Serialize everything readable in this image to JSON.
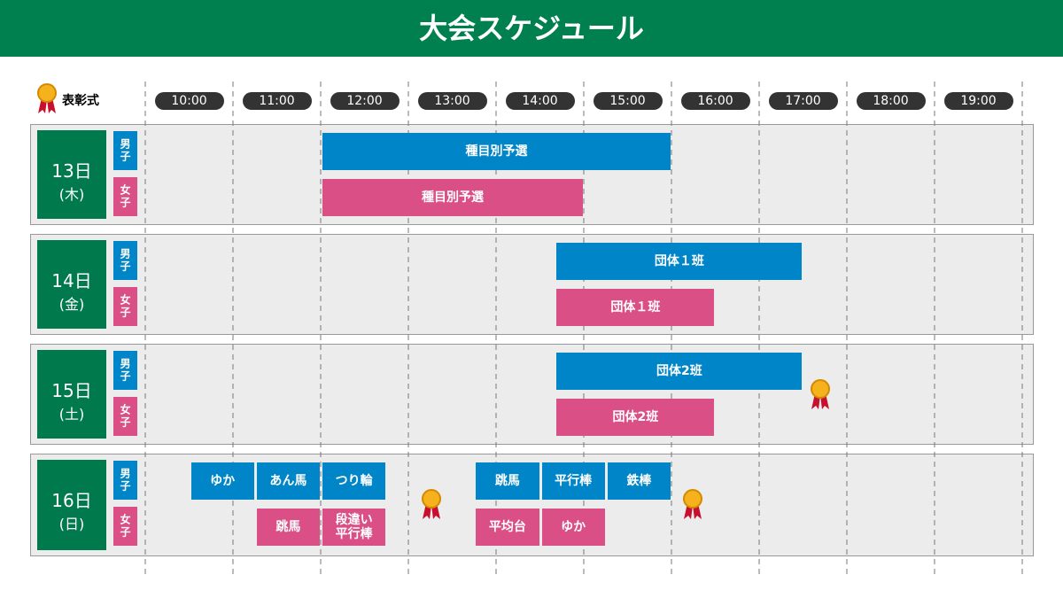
{
  "header": {
    "title": "大会スケジュール"
  },
  "legend": {
    "award": "表彰式"
  },
  "times": [
    "10:00",
    "11:00",
    "12:00",
    "13:00",
    "14:00",
    "15:00",
    "16:00",
    "17:00",
    "18:00",
    "19:00"
  ],
  "days": [
    {
      "date": "13日",
      "weekday": "(木)",
      "rows": [
        {
          "gender": "男子",
          "events": [
            {
              "lines": [
                "種目別予選"
              ],
              "start": 12,
              "end": 16
            }
          ]
        },
        {
          "gender": "女子",
          "events": [
            {
              "lines": [
                "種目別予選"
              ],
              "start": 12,
              "end": 15
            }
          ]
        }
      ],
      "awards": []
    },
    {
      "date": "14日",
      "weekday": "(金)",
      "rows": [
        {
          "gender": "男子",
          "events": [
            {
              "lines": [
                "団体１班"
              ],
              "start": 14.67,
              "end": 17.5
            }
          ]
        },
        {
          "gender": "女子",
          "events": [
            {
              "lines": [
                "団体１班"
              ],
              "start": 14.67,
              "end": 16.5
            }
          ]
        }
      ],
      "awards": []
    },
    {
      "date": "15日",
      "weekday": "(土)",
      "rows": [
        {
          "gender": "男子",
          "events": [
            {
              "lines": [
                "団体2班"
              ],
              "start": 14.67,
              "end": 17.5
            }
          ]
        },
        {
          "gender": "女子",
          "events": [
            {
              "lines": [
                "団体2班"
              ],
              "start": 14.67,
              "end": 16.5
            }
          ]
        }
      ],
      "awards": [
        17.7
      ]
    },
    {
      "date": "16日",
      "weekday": "(日)",
      "rows": [
        {
          "gender": "男子",
          "events": [
            {
              "lines": [
                "ゆか"
              ],
              "start": 10.5,
              "end": 11.25
            },
            {
              "lines": [
                "あん馬"
              ],
              "start": 11.25,
              "end": 12
            },
            {
              "lines": [
                "つり輪"
              ],
              "start": 12,
              "end": 12.75
            },
            {
              "lines": [
                "跳馬"
              ],
              "start": 13.75,
              "end": 14.5
            },
            {
              "lines": [
                "平行棒"
              ],
              "start": 14.5,
              "end": 15.25
            },
            {
              "lines": [
                "鉄棒"
              ],
              "start": 15.25,
              "end": 16
            }
          ]
        },
        {
          "gender": "女子",
          "events": [
            {
              "lines": [
                "跳馬"
              ],
              "start": 11.25,
              "end": 12
            },
            {
              "lines": [
                "段違い",
                "平行棒"
              ],
              "start": 12,
              "end": 12.75
            },
            {
              "lines": [
                "平均台"
              ],
              "start": 13.75,
              "end": 14.5
            },
            {
              "lines": [
                "ゆか"
              ],
              "start": 14.5,
              "end": 15.25
            }
          ]
        }
      ],
      "awards": [
        13.26,
        16.24
      ]
    }
  ]
}
